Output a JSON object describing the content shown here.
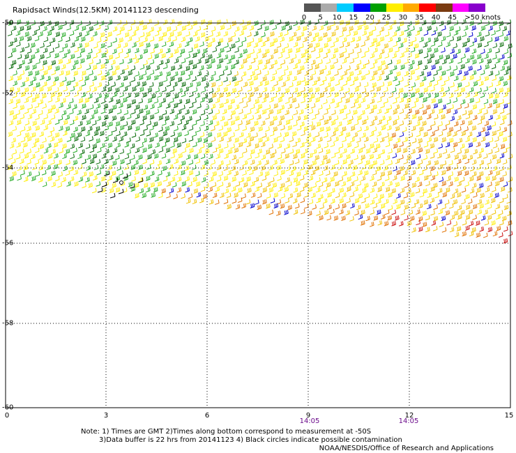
{
  "title": "Rapidsact Winds(12.5KM) 20141123 descending",
  "scale": {
    "labels": [
      "0",
      "5",
      "10",
      "15",
      "20",
      "25",
      "30",
      "35",
      "40",
      "45",
      ">50 knots"
    ],
    "colors": [
      "#555555",
      "#aaaaaa",
      "#00ccff",
      "#0000ff",
      "#00a000",
      "#ffee00",
      "#ffaa00",
      "#ff0000",
      "#7a3a10",
      "#ff00ff",
      "#8800cc"
    ]
  },
  "axes": {
    "lat_labels": [
      "-50",
      "-52",
      "-54",
      "-56",
      "-58",
      "-60"
    ],
    "lon_labels": [
      "0",
      "3",
      "6",
      "9",
      "12",
      "15"
    ],
    "time_labels": [
      "14:05",
      "14:05"
    ]
  },
  "notes": {
    "line1": "Note: 1) Times are GMT 2)Times along bottom correspond to measurement at -50S",
    "line2": "3)Data buffer is 22 hrs from 20141123 4) Black circles indicate possible contamination"
  },
  "credit": "NOAA/NESDIS/Office of Research and Applications",
  "colors": {
    "grid": "#000000",
    "barb_dark_green": "#006600",
    "barb_green": "#22aa22",
    "barb_yellow": "#ffee00",
    "barb_gold": "#f0c000",
    "barb_orange": "#e07000",
    "barb_red": "#cc1010",
    "barb_blue": "#0000cc",
    "barb_black": "#000000",
    "time_label": "#6a0a8a"
  }
}
